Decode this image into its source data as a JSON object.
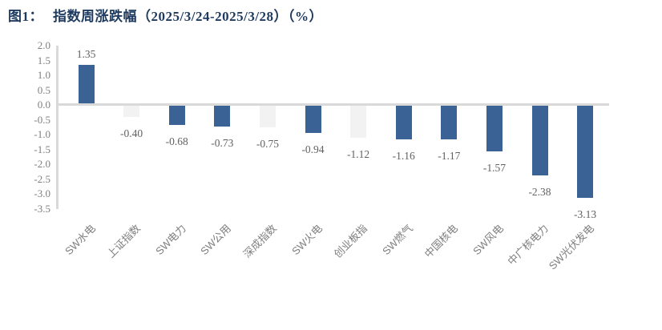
{
  "figure": {
    "title_prefix": "图1：",
    "title_text": "指数周涨跌幅（2025/3/24-2025/3/28）（%）"
  },
  "chart_data": {
    "type": "bar",
    "title": "指数周涨跌幅（2025/3/24-2025/3/28）（%）",
    "xlabel": "",
    "ylabel": "",
    "categories": [
      "SW水电",
      "上证指数",
      "SW电力",
      "SW公用",
      "深成指数",
      "SW火电",
      "创业板指",
      "SW燃气",
      "中国核电",
      "SW风电",
      "中广核电力",
      "SW光伏发电"
    ],
    "values": [
      1.35,
      -0.4,
      -0.68,
      -0.73,
      -0.75,
      -0.94,
      -1.12,
      -1.16,
      -1.17,
      -1.57,
      -2.38,
      -3.13
    ],
    "data_labels": [
      "1.35",
      "-0.40",
      "-0.68",
      "-0.73",
      "-0.75",
      "-0.94",
      "-1.12",
      "-1.16",
      "-1.17",
      "-1.57",
      "-2.38",
      "-3.13"
    ],
    "bar_colors": [
      "#3A6295",
      "#F2F2F2",
      "#3A6295",
      "#3A6295",
      "#F2F2F2",
      "#3A6295",
      "#F2F2F2",
      "#3A6295",
      "#3A6295",
      "#3A6295",
      "#3A6295",
      "#3A6295"
    ],
    "ylim": [
      -3.5,
      2.0
    ],
    "ytick_step": 0.5,
    "ytick_labels": [
      "2.0",
      "1.5",
      "1.0",
      "0.5",
      "0.0",
      "-0.5",
      "-1.0",
      "-1.5",
      "-2.0",
      "-2.5",
      "-3.0",
      "-3.5"
    ],
    "grid": false,
    "legend_position": "none",
    "colors": {
      "bar_primary": "#3A6295",
      "bar_secondary": "#F2F2F2",
      "axis_line": "#D9D9D9",
      "tick_text": "#7F7F7F",
      "category_text": "#7F7F7F",
      "data_label_text": "#616161",
      "title_text": "#1E3A5F"
    }
  }
}
